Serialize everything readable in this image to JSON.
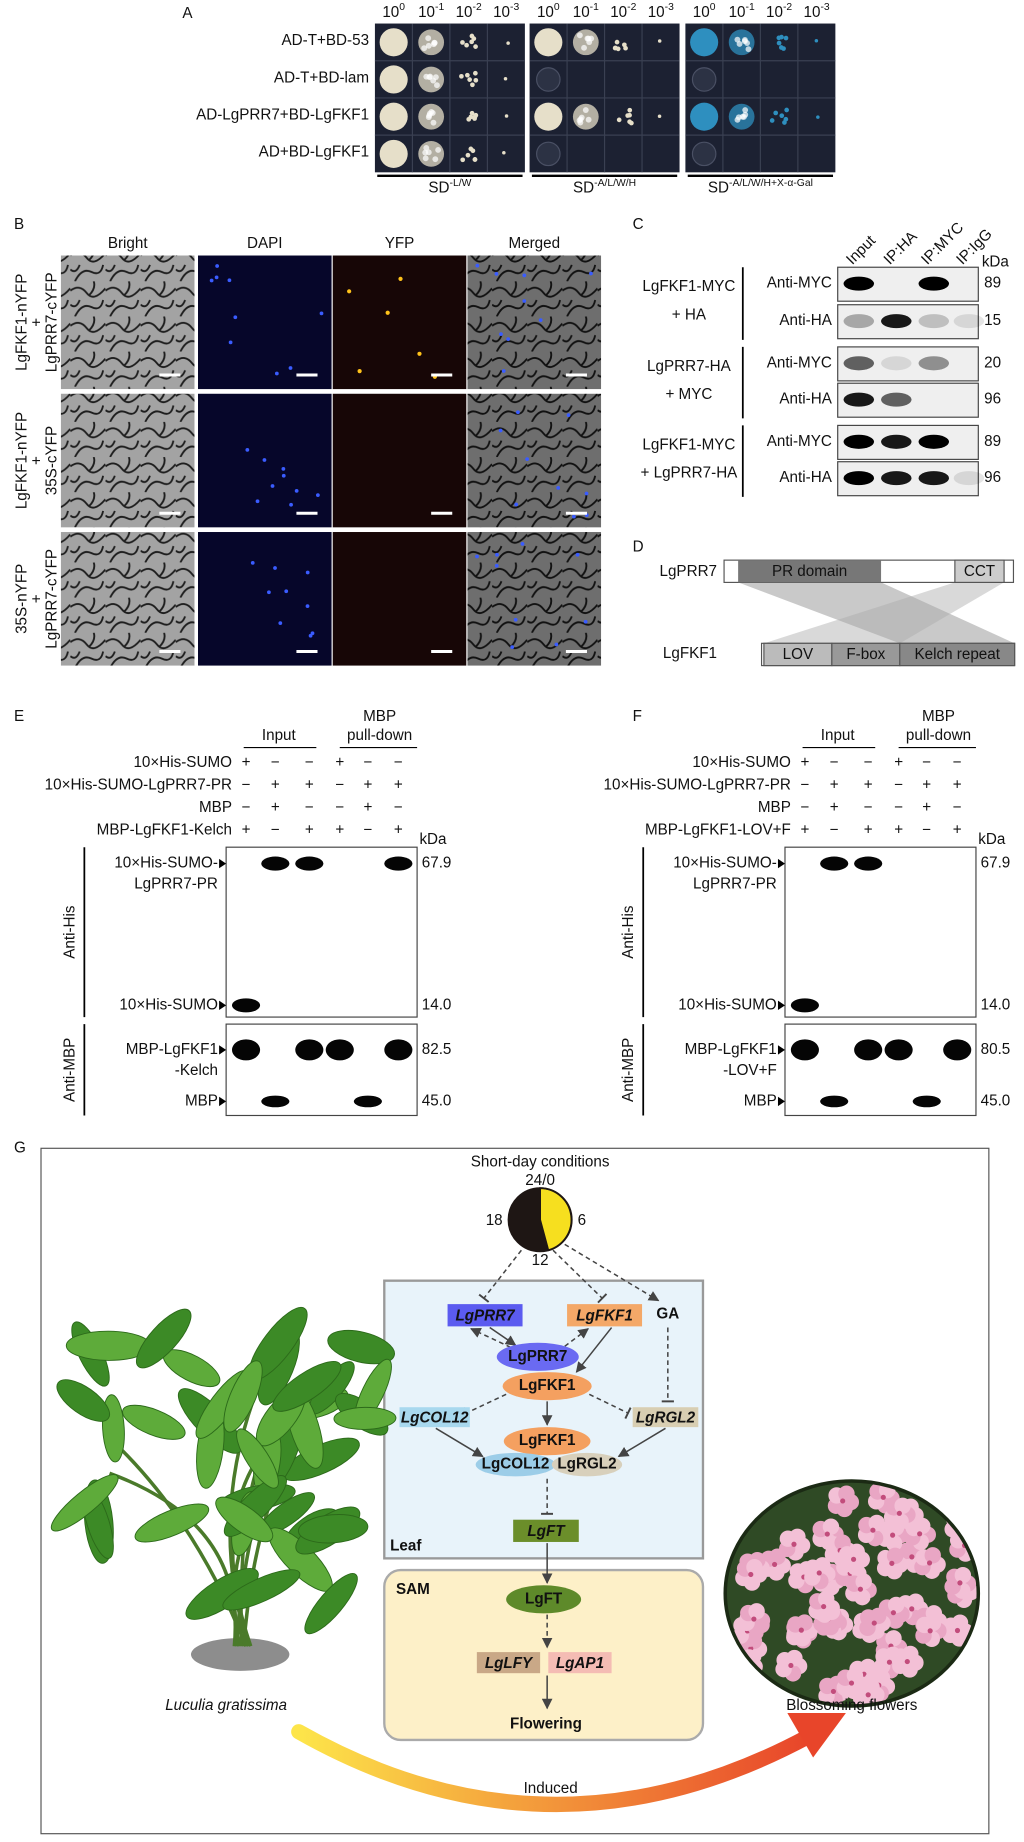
{
  "panel_a": {
    "label": "A",
    "dilution_base": "10",
    "dilution_exponents": [
      "0",
      "-1",
      "-2",
      "-3"
    ],
    "rows": [
      "AD-T+BD-53",
      "AD-T+BD-lam",
      "AD-LgPRR7+BD-LgFKF1",
      "AD+BD-LgFKF1"
    ],
    "media_base": "SD",
    "media_exponents": [
      "-L/W",
      "-A/L/W/H",
      "-A/L/W/H+X-α-Gal"
    ]
  },
  "panel_b": {
    "label": "B",
    "columns": [
      "Bright",
      "DAPI",
      "YFP",
      "Merged"
    ],
    "rows": [
      [
        "LgFKF1-nYFP",
        "+",
        "LgPRR7-cYFP"
      ],
      [
        "LgFKF1-nYFP",
        "+",
        "35S-cYFP"
      ],
      [
        "35S-nYFP",
        "+",
        "LgPRR7-cYFP"
      ]
    ]
  },
  "panel_c": {
    "label": "C",
    "columns": [
      "Input",
      "IP:HA",
      "IP:MYC",
      "IP:IgG"
    ],
    "unit": "kDa",
    "groups": [
      {
        "label": [
          "LgFKF1-MYC",
          "+ HA"
        ],
        "rows": [
          {
            "antibody": "Anti-MYC",
            "kda": "89"
          },
          {
            "antibody": "Anti-HA",
            "kda": "15"
          }
        ]
      },
      {
        "label": [
          "LgPRR7-HA",
          "+ MYC"
        ],
        "rows": [
          {
            "antibody": "Anti-MYC",
            "kda": "20"
          },
          {
            "antibody": "Anti-HA",
            "kda": "96"
          }
        ]
      },
      {
        "label": [
          "LgFKF1-MYC",
          "+ LgPRR7-HA"
        ],
        "rows": [
          {
            "antibody": "Anti-MYC",
            "kda": "89"
          },
          {
            "antibody": "Anti-HA",
            "kda": "96"
          }
        ]
      }
    ]
  },
  "panel_d": {
    "label": "D",
    "protein_1": "LgPRR7",
    "domains_1": [
      "PR domain",
      "CCT"
    ],
    "protein_2": "LgFKF1",
    "domains_2": [
      "LOV",
      "F-box",
      "Kelch repeat"
    ]
  },
  "panel_e": {
    "label": "E",
    "input": "Input",
    "pulldown": [
      "MBP",
      "pull-down"
    ],
    "rows": [
      {
        "name": "10×His-SUMO",
        "signs": [
          "+",
          "−",
          "−",
          "+",
          "−",
          "−"
        ]
      },
      {
        "name": "10×His-SUMO-LgPRR7-PR",
        "signs": [
          "−",
          "+",
          "+",
          "−",
          "+",
          "+"
        ]
      },
      {
        "name": "MBP",
        "signs": [
          "−",
          "+",
          "−",
          "−",
          "+",
          "−"
        ]
      },
      {
        "name": "MBP-LgFKF1-Kelch",
        "signs": [
          "+",
          "−",
          "+",
          "+",
          "−",
          "+"
        ]
      }
    ],
    "unit": "kDa",
    "blots": [
      {
        "antibody": "Anti-His",
        "bands": [
          {
            "label": [
              "10×His-SUMO-",
              "LgPRR7-PR"
            ],
            "kda": "67.9"
          },
          {
            "label": [
              "10×His-SUMO"
            ],
            "kda": "14.0"
          }
        ]
      },
      {
        "antibody": "Anti-MBP",
        "bands": [
          {
            "label": [
              "MBP-LgFKF1",
              "-Kelch"
            ],
            "kda": "82.5"
          },
          {
            "label": [
              "MBP"
            ],
            "kda": "45.0"
          }
        ]
      }
    ]
  },
  "panel_f": {
    "label": "F",
    "input": "Input",
    "pulldown": [
      "MBP",
      "pull-down"
    ],
    "rows": [
      {
        "name": "10×His-SUMO",
        "signs": [
          "+",
          "−",
          "−",
          "+",
          "−",
          "−"
        ]
      },
      {
        "name": "10×His-SUMO-LgPRR7-PR",
        "signs": [
          "−",
          "+",
          "+",
          "−",
          "+",
          "+"
        ]
      },
      {
        "name": "MBP",
        "signs": [
          "−",
          "+",
          "−",
          "−",
          "+",
          "−"
        ]
      },
      {
        "name": "MBP-LgFKF1-LOV+F",
        "signs": [
          "+",
          "−",
          "+",
          "+",
          "−",
          "+"
        ]
      }
    ],
    "unit": "kDa",
    "blots": [
      {
        "antibody": "Anti-His",
        "bands": [
          {
            "label": [
              "10×His-SUMO-",
              "LgPRR7-PR"
            ],
            "kda": "67.9"
          },
          {
            "label": [
              "10×His-SUMO"
            ],
            "kda": "14.0"
          }
        ]
      },
      {
        "antibody": "Anti-MBP",
        "bands": [
          {
            "label": [
              "MBP-LgFKF1",
              "-LOV+F"
            ],
            "kda": "80.5"
          },
          {
            "label": [
              "MBP"
            ],
            "kda": "45.0"
          }
        ]
      }
    ]
  },
  "panel_g": {
    "label": "G",
    "title": "Short-day conditions",
    "clock": [
      "24/0",
      "6",
      "12",
      "18"
    ],
    "nodes": {
      "prr7_gene": "LgPRR7",
      "fkf1_gene": "LgFKF1",
      "ga": "GA",
      "prr7_protein": "LgPRR7",
      "fkf1_protein": "LgFKF1",
      "col12_gene": "LgCOL12",
      "rgl2_gene": "LgRGL2",
      "fkf1_complex": "LgFKF1",
      "col12_protein": "LgCOL12",
      "rgl2_protein": "LgRGL2",
      "ft_gene": "LgFT",
      "leaf": "Leaf",
      "sam": "SAM",
      "ft_protein": "LgFT",
      "lfy_gene": "LgLFY",
      "ap1_gene": "LgAP1",
      "flowering": "Flowering"
    },
    "plant": "Luculia gratissima",
    "flowers": "Blossoming flowers",
    "induced": "Induced"
  }
}
